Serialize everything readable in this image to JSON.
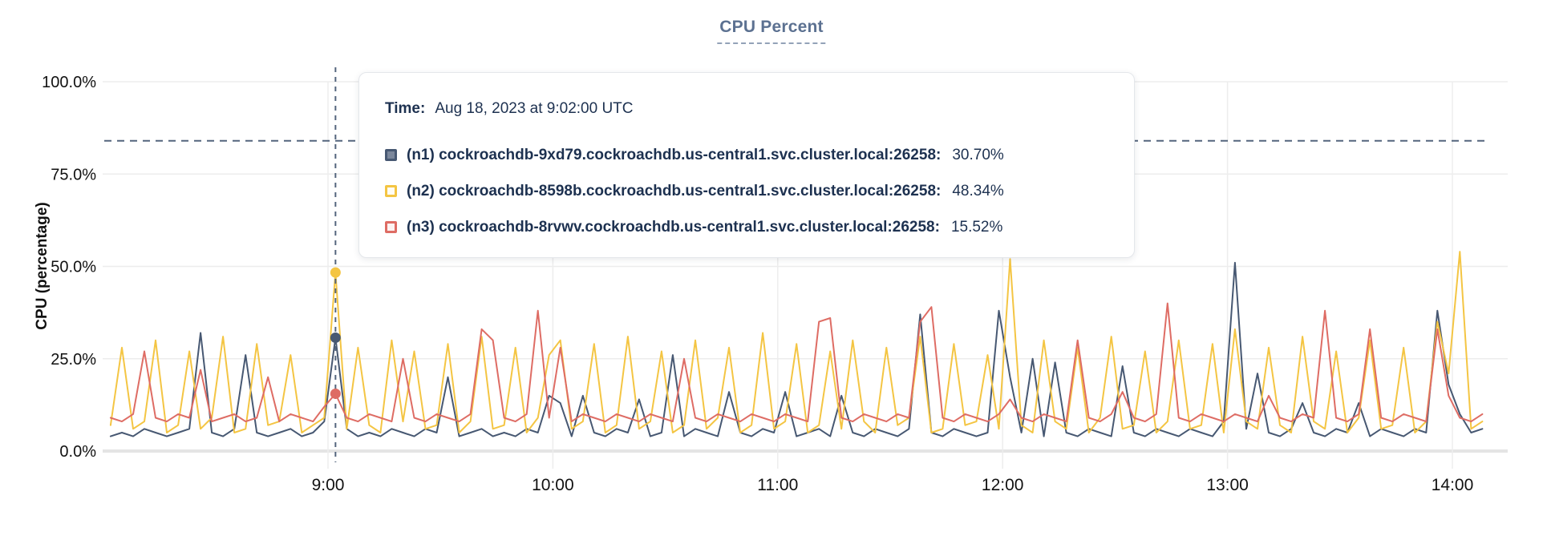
{
  "title": "CPU Percent",
  "colors": {
    "n1": "#475872",
    "n2": "#F4C543",
    "n3": "#DE6C64",
    "hover_dash": "#54657d",
    "threshold_dash": "#54657d",
    "grid": "#ededed",
    "grid_zero": "#e4e4e4",
    "axis_text": "#111111",
    "tooltip_text": "#1d3150"
  },
  "tooltip": {
    "time_label": "Time:",
    "time_value": "Aug 18, 2023 at 9:02:00 UTC",
    "rows": [
      {
        "name": "(n1) cockroachdb-9xd79.cockroachdb.us-central1.svc.cluster.local:26258:",
        "value": "30.70%",
        "color": "#475872",
        "swatch_fill": "#7b879b"
      },
      {
        "name": "(n2) cockroachdb-8598b.cockroachdb.us-central1.svc.cluster.local:26258:",
        "value": "48.34%",
        "color": "#F4C543",
        "swatch_fill": "#fffdf4"
      },
      {
        "name": "(n3) cockroachdb-8rvwv.cockroachdb.us-central1.svc.cluster.local:26258:",
        "value": "15.52%",
        "color": "#DE6C64",
        "swatch_fill": "#fdf3f2"
      }
    ]
  },
  "chart_data": {
    "type": "line",
    "title": "CPU Percent",
    "xlabel": "",
    "ylabel": "CPU (percentage)",
    "ylim": [
      0,
      100
    ],
    "grid": true,
    "legend_position": "tooltip-overlay",
    "y_ticks": [
      {
        "v": 0,
        "label": "0.0%"
      },
      {
        "v": 25,
        "label": "25.0%"
      },
      {
        "v": 50,
        "label": "50.0%"
      },
      {
        "v": 75,
        "label": "75.0%"
      },
      {
        "v": 100,
        "label": "100.0%"
      }
    ],
    "x_ticks": [
      {
        "m": 540,
        "label": "9:00"
      },
      {
        "m": 600,
        "label": "10:00"
      },
      {
        "m": 660,
        "label": "11:00"
      },
      {
        "m": 720,
        "label": "12:00"
      },
      {
        "m": 780,
        "label": "13:00"
      },
      {
        "m": 840,
        "label": "14:00"
      }
    ],
    "x_start_minutes": 482,
    "x_step_minutes": 3,
    "threshold_value": 84,
    "hover": {
      "minutes": 542,
      "index": 20,
      "time": "Aug 18, 2023 at 9:02:00 UTC"
    },
    "series": [
      {
        "name": "(n1) cockroachdb-9xd79.cockroachdb.us-central1.svc.cluster.local:26258",
        "color": "#475872",
        "hover_value": 30.7,
        "values": [
          4,
          5,
          4,
          6,
          5,
          4,
          5,
          6,
          32,
          5,
          4,
          6,
          26,
          5,
          4,
          5,
          6,
          4,
          5,
          8,
          30.7,
          6,
          4,
          5,
          4,
          6,
          5,
          4,
          6,
          5,
          20,
          4,
          5,
          6,
          4,
          5,
          4,
          6,
          5,
          15,
          13,
          4,
          15,
          5,
          4,
          6,
          5,
          14,
          4,
          5,
          26,
          4,
          6,
          5,
          4,
          16,
          5,
          4,
          6,
          5,
          16,
          4,
          5,
          6,
          4,
          15,
          5,
          4,
          6,
          5,
          4,
          6,
          37,
          5,
          4,
          6,
          5,
          4,
          5,
          38,
          20,
          5,
          25,
          4,
          24,
          5,
          4,
          6,
          5,
          4,
          23,
          5,
          4,
          6,
          5,
          4,
          6,
          5,
          4,
          8,
          51,
          6,
          21,
          5,
          4,
          6,
          13,
          5,
          4,
          6,
          5,
          13,
          4,
          6,
          5,
          4,
          6,
          5,
          38,
          18,
          10,
          5,
          6
        ]
      },
      {
        "name": "(n2) cockroachdb-8598b.cockroachdb.us-central1.svc.cluster.local:26258",
        "color": "#F4C543",
        "hover_value": 48.34,
        "values": [
          7,
          28,
          6,
          8,
          30,
          5,
          7,
          27,
          6,
          9,
          31,
          5,
          6,
          29,
          7,
          8,
          26,
          5,
          7,
          9,
          48.34,
          6,
          28,
          7,
          5,
          30,
          8,
          27,
          6,
          7,
          29,
          5,
          8,
          31,
          6,
          7,
          28,
          5,
          9,
          26,
          30,
          6,
          8,
          29,
          5,
          7,
          31,
          6,
          8,
          27,
          5,
          7,
          30,
          6,
          9,
          28,
          5,
          7,
          32,
          6,
          8,
          29,
          5,
          7,
          27,
          6,
          30,
          8,
          5,
          28,
          7,
          9,
          31,
          5,
          6,
          29,
          7,
          8,
          26,
          6,
          52,
          7,
          5,
          30,
          8,
          6,
          28,
          5,
          9,
          31,
          6,
          7,
          27,
          5,
          8,
          30,
          6,
          7,
          29,
          5,
          33,
          8,
          6,
          28,
          7,
          5,
          31,
          8,
          6,
          27,
          5,
          9,
          30,
          6,
          7,
          28,
          5,
          8,
          35,
          21,
          54,
          6,
          8
        ]
      },
      {
        "name": "(n3) cockroachdb-8rvwv.cockroachdb.us-central1.svc.cluster.local:26258",
        "color": "#DE6C64",
        "hover_value": 15.52,
        "values": [
          9,
          8,
          10,
          27,
          9,
          8,
          10,
          9,
          22,
          8,
          9,
          10,
          8,
          9,
          20,
          8,
          10,
          9,
          8,
          12,
          15.52,
          9,
          8,
          10,
          9,
          8,
          25,
          9,
          8,
          10,
          9,
          8,
          10,
          33,
          30,
          9,
          8,
          10,
          38,
          9,
          28,
          8,
          10,
          9,
          8,
          10,
          9,
          8,
          10,
          9,
          8,
          25,
          9,
          8,
          10,
          9,
          8,
          10,
          9,
          8,
          10,
          9,
          8,
          35,
          36,
          9,
          8,
          10,
          9,
          8,
          10,
          9,
          35,
          39,
          9,
          8,
          10,
          9,
          8,
          10,
          14,
          9,
          8,
          10,
          9,
          8,
          30,
          9,
          8,
          10,
          16,
          9,
          8,
          10,
          40,
          9,
          8,
          10,
          9,
          8,
          10,
          9,
          8,
          15,
          9,
          8,
          10,
          9,
          38,
          9,
          8,
          10,
          33,
          9,
          8,
          10,
          9,
          8,
          33,
          15,
          9,
          8,
          10
        ]
      }
    ]
  }
}
